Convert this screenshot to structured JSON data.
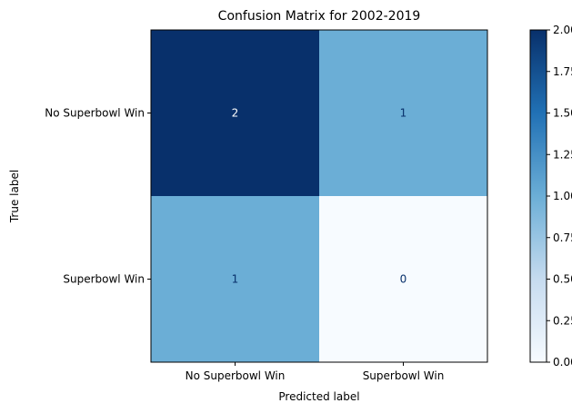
{
  "chart_data": {
    "type": "heatmap",
    "title": "Confusion Matrix for 2002-2019",
    "xlabel": "Predicted label",
    "ylabel": "True label",
    "x_categories": [
      "No Superbowl Win",
      "Superbowl Win"
    ],
    "y_categories": [
      "No Superbowl Win",
      "Superbowl Win"
    ],
    "values": [
      [
        2,
        1
      ],
      [
        1,
        0
      ]
    ],
    "colormap": "Blues",
    "color_range": [
      0,
      2
    ],
    "colorbar_ticks": [
      "0.00",
      "0.25",
      "0.50",
      "0.75",
      "1.00",
      "1.25",
      "1.50",
      "1.75",
      "2.00"
    ],
    "grid": false
  },
  "colors": {
    "cmap_low": "#f7fbff",
    "cmap_q1": "#c6dbef",
    "cmap_mid": "#6baed6",
    "cmap_q3": "#2171b5",
    "cmap_high": "#08306b",
    "text_on_dark": "#ffffff",
    "text_on_light": "#08306b"
  }
}
